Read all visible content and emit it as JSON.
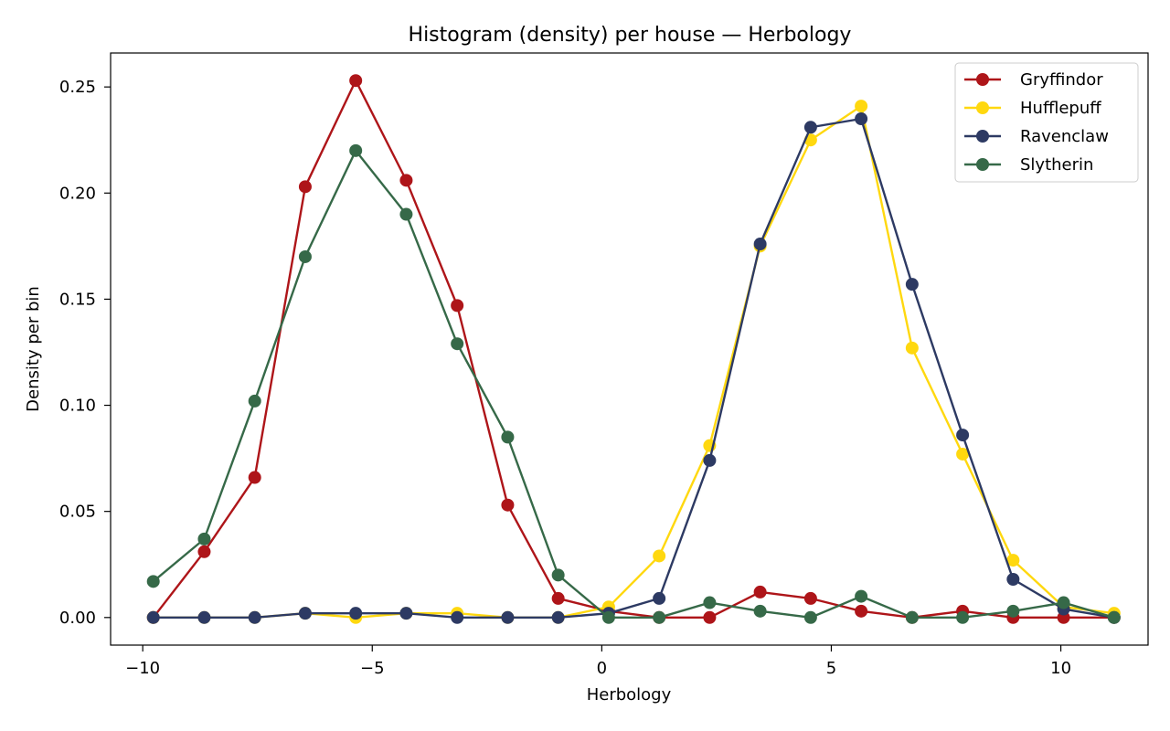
{
  "chart_data": {
    "type": "line",
    "title": "Histogram (density) per house — Herbology",
    "xlabel": "Herbology",
    "ylabel": "Density per bin",
    "xlim": [
      -10.7,
      11.9
    ],
    "ylim": [
      -0.013,
      0.266
    ],
    "xticks": [
      -10,
      -5,
      0,
      5,
      10
    ],
    "xtick_labels": [
      "−10",
      "−5",
      "0",
      "5",
      "10"
    ],
    "yticks": [
      0.0,
      0.05,
      0.1,
      0.15,
      0.2,
      0.25
    ],
    "ytick_labels": [
      "0.00",
      "0.05",
      "0.10",
      "0.15",
      "0.20",
      "0.25"
    ],
    "grid": false,
    "legend_position": "top-right",
    "x": [
      -9.77,
      -8.66,
      -7.56,
      -6.46,
      -5.36,
      -4.26,
      -3.15,
      -2.05,
      -0.95,
      0.15,
      1.25,
      2.35,
      3.45,
      4.55,
      5.65,
      6.76,
      7.86,
      8.96,
      10.06,
      11.16
    ],
    "series": [
      {
        "name": "Gryffindor",
        "color": "#ae1519",
        "values": [
          0.0,
          0.031,
          0.066,
          0.203,
          0.253,
          0.206,
          0.147,
          0.053,
          0.009,
          0.003,
          0.0,
          0.0,
          0.012,
          0.009,
          0.003,
          0.0,
          0.003,
          0.0,
          0.0,
          0.0
        ]
      },
      {
        "name": "Hufflepuff",
        "color": "#ffd80f",
        "values": [
          0.0,
          0.0,
          0.0,
          0.002,
          0.0,
          0.002,
          0.002,
          0.0,
          0.0,
          0.005,
          0.029,
          0.081,
          0.175,
          0.225,
          0.241,
          0.127,
          0.077,
          0.027,
          0.005,
          0.002
        ]
      },
      {
        "name": "Ravenclaw",
        "color": "#2d3a63",
        "values": [
          0.0,
          0.0,
          0.0,
          0.002,
          0.002,
          0.002,
          0.0,
          0.0,
          0.0,
          0.002,
          0.009,
          0.074,
          0.176,
          0.231,
          0.235,
          0.157,
          0.086,
          0.018,
          0.004,
          0.0
        ]
      },
      {
        "name": "Slytherin",
        "color": "#366948",
        "values": [
          0.017,
          0.037,
          0.102,
          0.17,
          0.22,
          0.19,
          0.129,
          0.085,
          0.02,
          0.0,
          0.0,
          0.007,
          0.003,
          0.0,
          0.01,
          0.0,
          0.0,
          0.003,
          0.007,
          0.0
        ]
      }
    ]
  }
}
